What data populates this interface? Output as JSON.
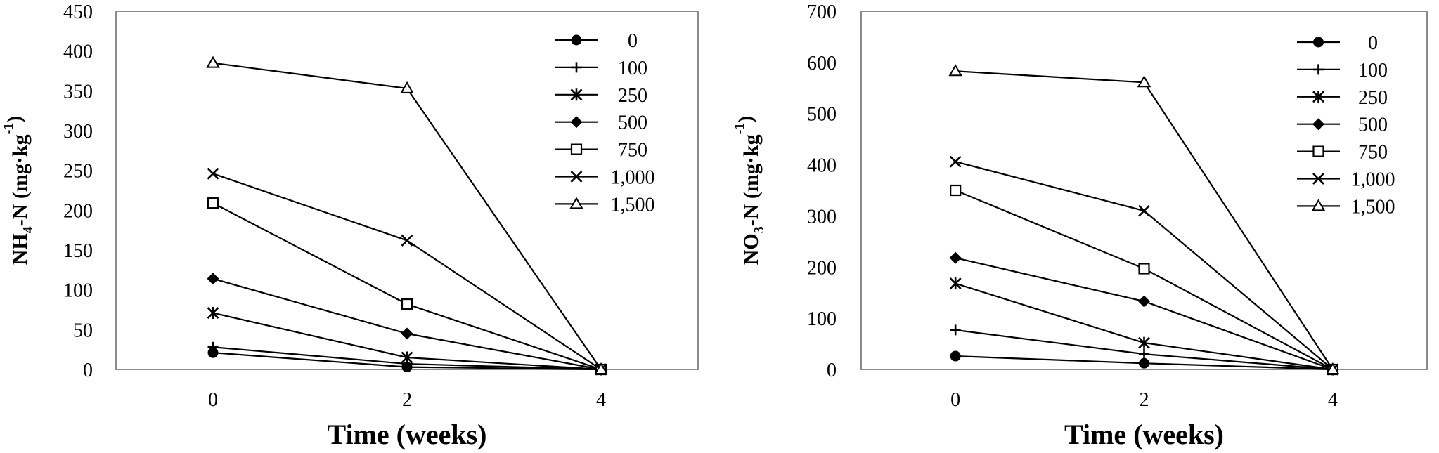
{
  "chart_data": [
    {
      "type": "line",
      "xlabel": "Time (weeks)",
      "ylabel": {
        "main": "NH",
        "sub": "4",
        "rest": "-N (mg·kg",
        "sup": "-1",
        "end": ")"
      },
      "x": [
        0,
        2,
        4
      ],
      "xticks": [
        "0",
        "2",
        "4"
      ],
      "xlim": [
        -1,
        5
      ],
      "ylim": [
        0,
        450
      ],
      "yticks": [
        "0",
        "50",
        "100",
        "150",
        "200",
        "250",
        "300",
        "350",
        "400",
        "450"
      ],
      "grid": false,
      "legend": "top-right",
      "series": [
        {
          "name": "0",
          "marker": "circle",
          "values": [
            21,
            3,
            0
          ]
        },
        {
          "name": "100",
          "marker": "plus",
          "values": [
            28,
            7,
            0
          ]
        },
        {
          "name": "250",
          "marker": "star",
          "values": [
            71,
            15,
            0
          ]
        },
        {
          "name": "500",
          "marker": "diamond",
          "values": [
            114,
            45,
            0
          ]
        },
        {
          "name": "750",
          "marker": "square",
          "values": [
            209,
            82,
            0
          ]
        },
        {
          "name": "1,000",
          "marker": "x",
          "values": [
            246,
            162,
            0
          ]
        },
        {
          "name": "1,500",
          "marker": "triangle",
          "values": [
            385,
            353,
            0
          ]
        }
      ]
    },
    {
      "type": "line",
      "xlabel": "Time (weeks)",
      "ylabel": {
        "main": "NO",
        "sub": "3",
        "rest": "-N (mg·kg",
        "sup": "-1",
        "end": ")"
      },
      "x": [
        0,
        2,
        4
      ],
      "xticks": [
        "0",
        "2",
        "4"
      ],
      "xlim": [
        -1,
        5
      ],
      "ylim": [
        0,
        700
      ],
      "yticks": [
        "0",
        "100",
        "200",
        "300",
        "400",
        "500",
        "600",
        "700"
      ],
      "grid": false,
      "legend": "top-right",
      "series": [
        {
          "name": "0",
          "marker": "circle",
          "values": [
            26,
            12,
            0
          ]
        },
        {
          "name": "100",
          "marker": "plus",
          "values": [
            77,
            30,
            0
          ]
        },
        {
          "name": "250",
          "marker": "star",
          "values": [
            168,
            52,
            0
          ]
        },
        {
          "name": "500",
          "marker": "diamond",
          "values": [
            218,
            133,
            0
          ]
        },
        {
          "name": "750",
          "marker": "square",
          "values": [
            350,
            197,
            0
          ]
        },
        {
          "name": "1,000",
          "marker": "x",
          "values": [
            406,
            310,
            0
          ]
        },
        {
          "name": "1,500",
          "marker": "triangle",
          "values": [
            583,
            561,
            0
          ]
        }
      ]
    }
  ]
}
